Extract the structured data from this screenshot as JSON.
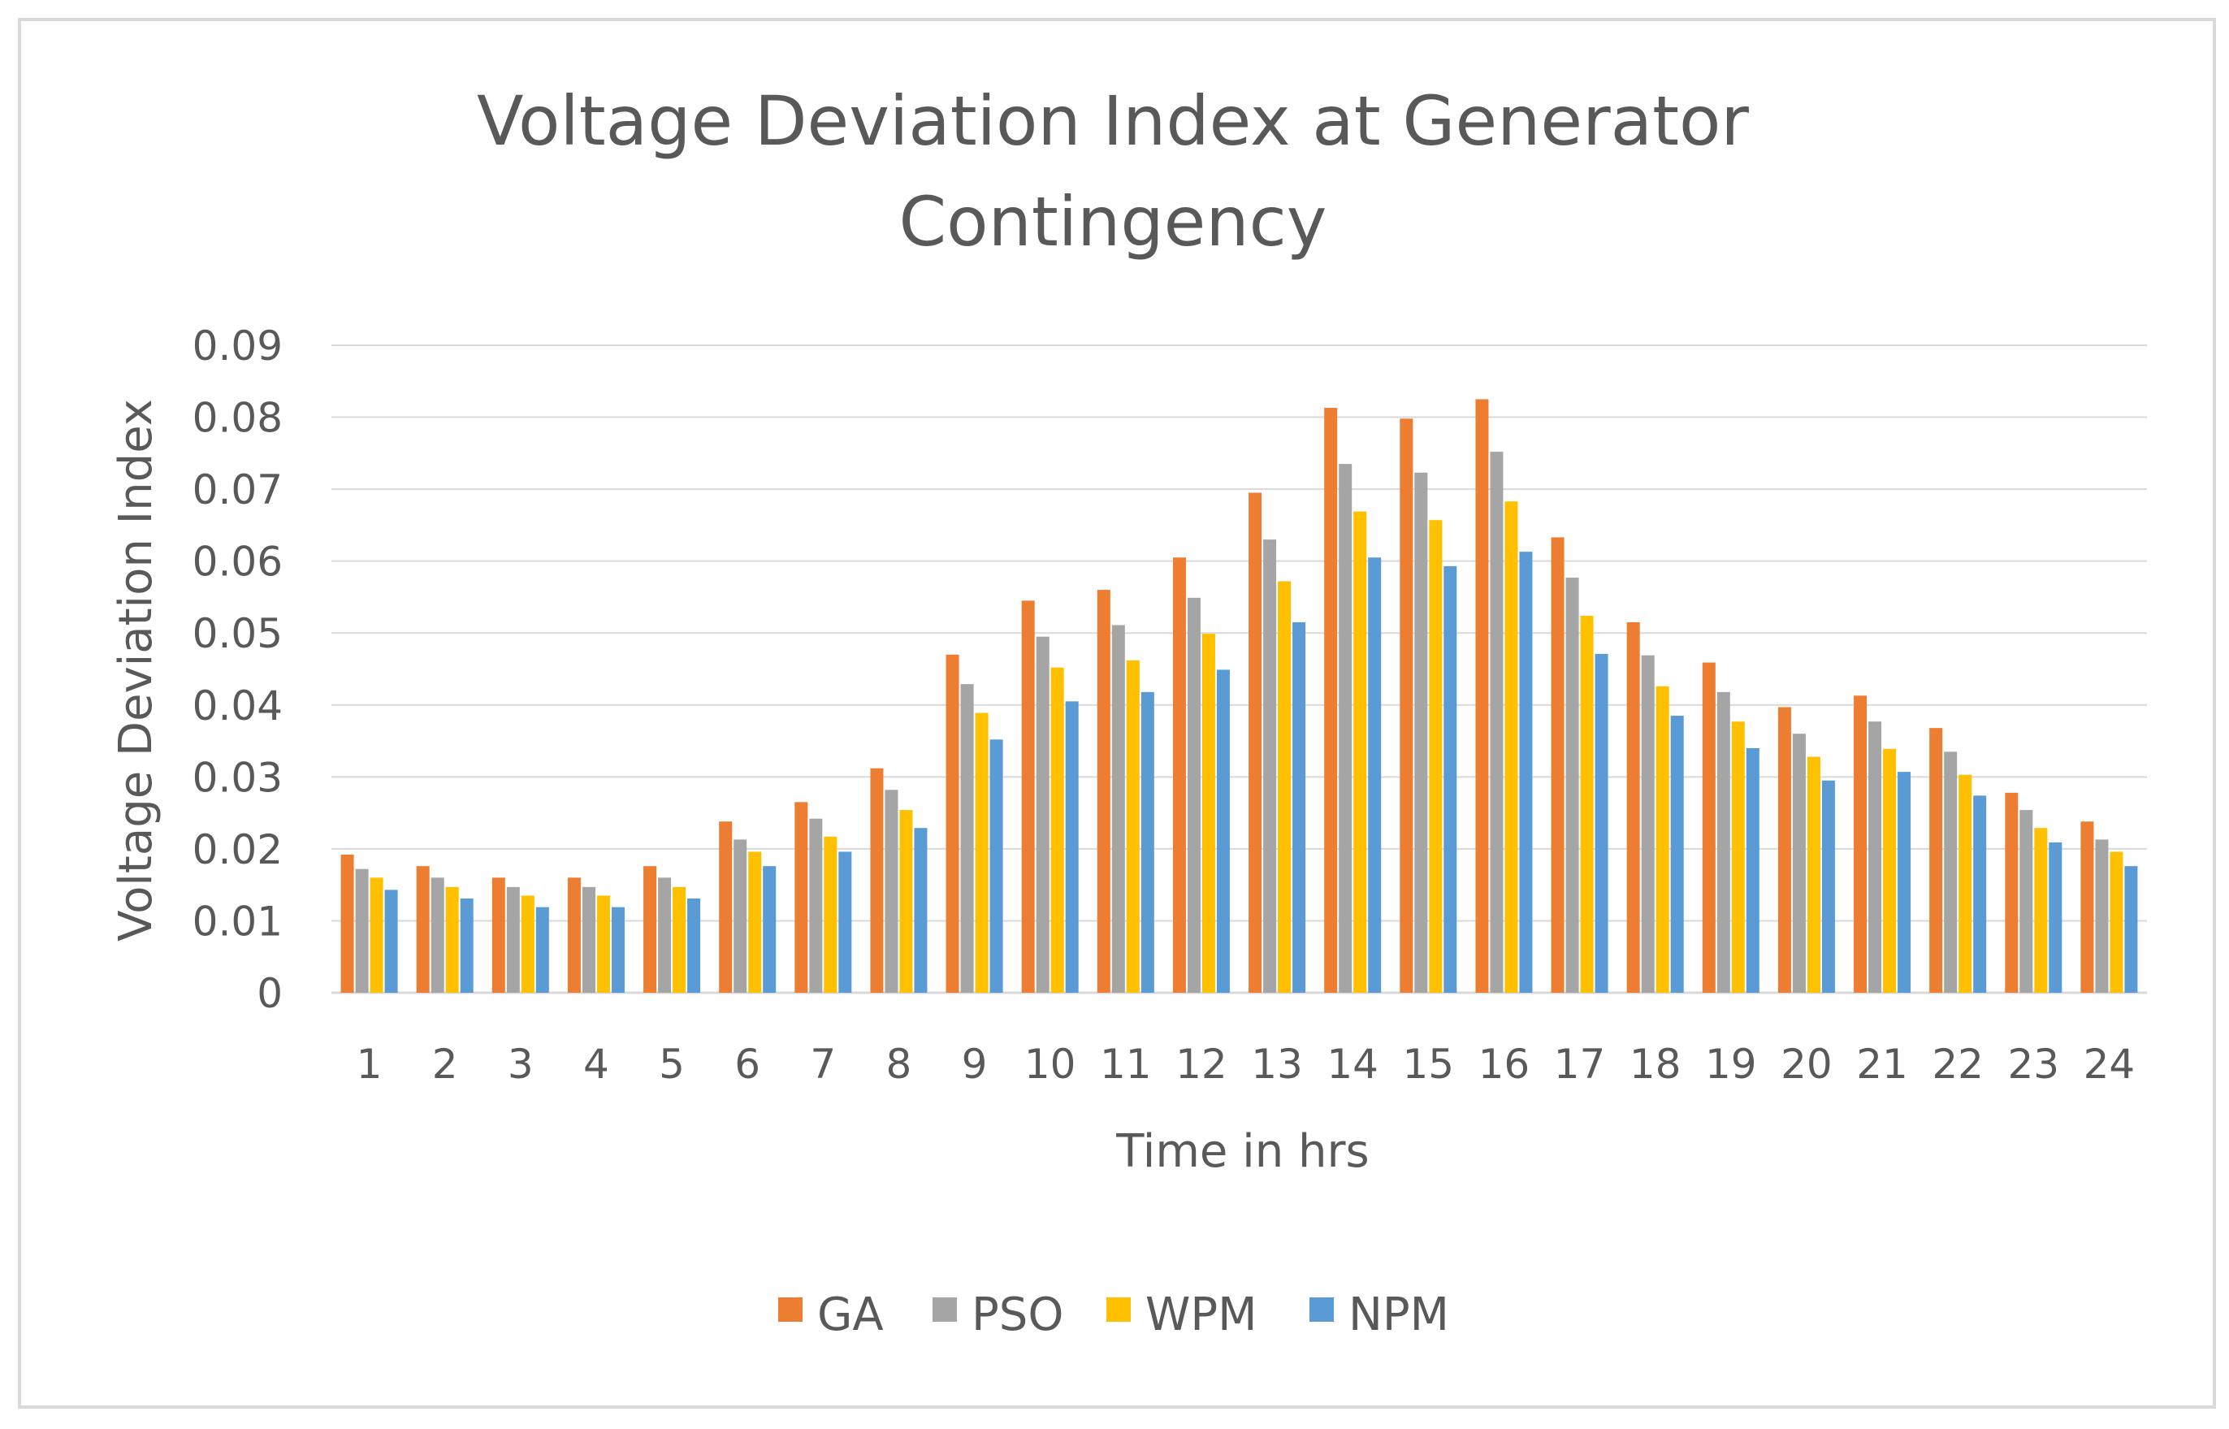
{
  "chart_data": {
    "type": "bar",
    "title_lines": [
      "Voltage Deviation Index at Generator",
      "Contingency"
    ],
    "xlabel": "Time in hrs",
    "ylabel": "Voltage Deviation Index",
    "ylim": [
      0,
      0.09
    ],
    "ytick_values": [
      0,
      0.01,
      0.02,
      0.03,
      0.04,
      0.05,
      0.06,
      0.07,
      0.08,
      0.09
    ],
    "ytick_labels": [
      "0",
      "0.01",
      "0.02",
      "0.03",
      "0.04",
      "0.05",
      "0.06",
      "0.07",
      "0.08",
      "0.09"
    ],
    "grid": true,
    "legend_position": "bottom",
    "categories": [
      "1",
      "2",
      "3",
      "4",
      "5",
      "6",
      "7",
      "8",
      "9",
      "10",
      "11",
      "12",
      "13",
      "14",
      "15",
      "16",
      "17",
      "18",
      "19",
      "20",
      "21",
      "22",
      "23",
      "24"
    ],
    "series": [
      {
        "name": "GA",
        "color": "#ED7D31",
        "values": [
          0.0192,
          0.0176,
          0.016,
          0.016,
          0.0176,
          0.0238,
          0.0265,
          0.0312,
          0.047,
          0.0545,
          0.056,
          0.0605,
          0.0695,
          0.0813,
          0.0798,
          0.0825,
          0.0633,
          0.0515,
          0.0459,
          0.0397,
          0.0413,
          0.0368,
          0.0278,
          0.0238
        ]
      },
      {
        "name": "PSO",
        "color": "#A5A5A5",
        "values": [
          0.0172,
          0.016,
          0.0147,
          0.0147,
          0.016,
          0.0213,
          0.0242,
          0.0282,
          0.0429,
          0.0495,
          0.0511,
          0.0549,
          0.063,
          0.0735,
          0.0723,
          0.0752,
          0.0577,
          0.0469,
          0.0418,
          0.036,
          0.0377,
          0.0335,
          0.0254,
          0.0213
        ]
      },
      {
        "name": "WPM",
        "color": "#FFC000",
        "values": [
          0.016,
          0.0147,
          0.0135,
          0.0135,
          0.0147,
          0.0196,
          0.0217,
          0.0254,
          0.0389,
          0.0452,
          0.0462,
          0.0499,
          0.0572,
          0.0669,
          0.0657,
          0.0683,
          0.0524,
          0.0426,
          0.0377,
          0.0328,
          0.0339,
          0.0303,
          0.0229,
          0.0196
        ]
      },
      {
        "name": "NPM",
        "color": "#5B9BD5",
        "values": [
          0.0143,
          0.0131,
          0.0119,
          0.0119,
          0.0131,
          0.0176,
          0.0196,
          0.0229,
          0.0352,
          0.0405,
          0.0418,
          0.0449,
          0.0515,
          0.0605,
          0.0593,
          0.0613,
          0.0471,
          0.0385,
          0.034,
          0.0295,
          0.0307,
          0.0274,
          0.0209,
          0.0176
        ]
      }
    ]
  }
}
